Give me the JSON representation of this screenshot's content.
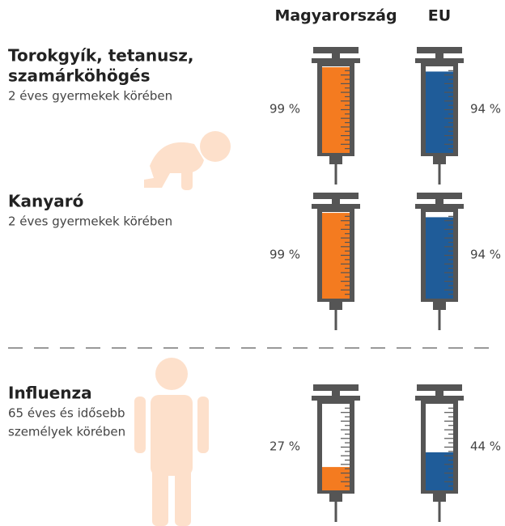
{
  "chart_data": {
    "type": "syringe",
    "ylim": [
      0,
      100
    ],
    "series": [
      {
        "name": "Magyarország",
        "color": "#f47b20",
        "values": [
          99,
          99,
          27
        ],
        "value_labels": [
          "99 %",
          "99 %",
          "27 %"
        ]
      },
      {
        "name": "EU",
        "color": "#1f5c99",
        "values": [
          94,
          94,
          44
        ],
        "value_labels": [
          "94 %",
          "94 %",
          "44 %"
        ]
      }
    ],
    "categories": [
      {
        "title": [
          "Torokgyík, tetanusz,",
          "szamárköhögés"
        ],
        "subtitle": [
          "2 éves gyermekek körében"
        ]
      },
      {
        "title": [
          "Kanyaró"
        ],
        "subtitle": [
          "2 éves gyermekek körében"
        ]
      },
      {
        "title": [
          "Influenza"
        ],
        "subtitle": [
          "65 éves és idősebb",
          "személyek körében"
        ]
      }
    ]
  }
}
